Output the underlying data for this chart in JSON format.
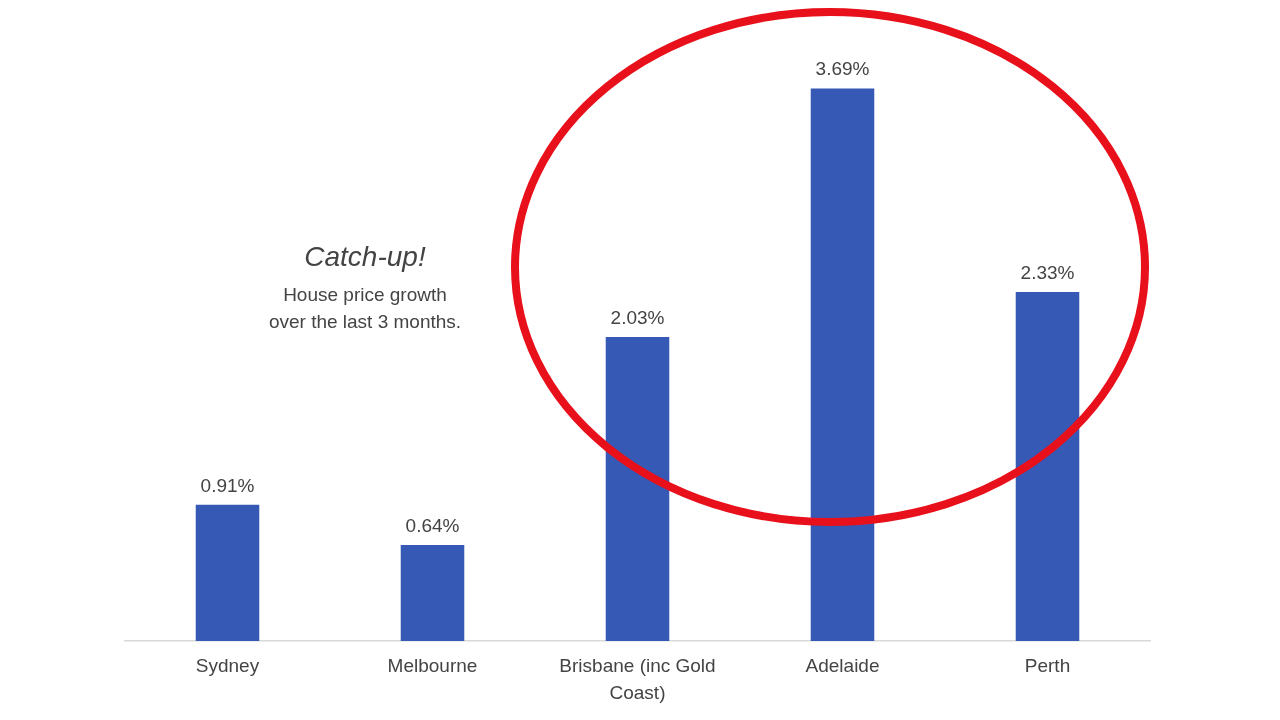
{
  "chart_data": {
    "type": "bar",
    "title": "Catch-up!",
    "subtitle": "House price growth over the last 3 months.",
    "categories": [
      "Sydney",
      "Melbourne",
      "Brisbane (inc Gold Coast)",
      "Adelaide",
      "Perth"
    ],
    "values": [
      0.91,
      0.64,
      2.03,
      3.69,
      2.33
    ],
    "color": "#3759b6",
    "value_labels": [
      "0.91%",
      "0.64%",
      "2.03%",
      "3.69%",
      "2.33%"
    ]
  }
}
